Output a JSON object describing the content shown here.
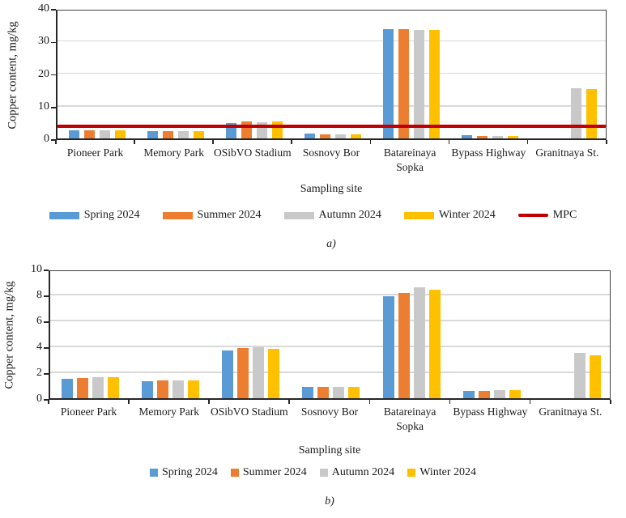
{
  "figure": {
    "background": "#ffffff"
  },
  "chart_data": [
    {
      "id": "a",
      "type": "bar",
      "title": "",
      "ylabel": "Copper content, mg/kg",
      "xlabel": "Sampling site",
      "caption": "a)",
      "ylim": [
        0,
        40
      ],
      "yticks": [
        0,
        10,
        20,
        30,
        40
      ],
      "grid": true,
      "legend_position": "bottom",
      "categories": [
        "Pioneer Park",
        "Memory Park",
        "OSibVO Stadium",
        "Sosnovy Bor",
        "Batareinaya Sopka",
        "Bypass Highway",
        "Granitnaya St."
      ],
      "series": [
        {
          "name": "Spring 2024",
          "color": "#5B9BD5",
          "values": [
            2.5,
            2.2,
            4.8,
            1.5,
            33.5,
            1.0,
            0
          ]
        },
        {
          "name": "Summer 2024",
          "color": "#ED7D31",
          "values": [
            2.5,
            2.2,
            5.2,
            1.3,
            33.6,
            0.8,
            0
          ]
        },
        {
          "name": "Autumn 2024",
          "color": "#C9C9C9",
          "values": [
            2.5,
            2.2,
            4.9,
            1.2,
            33.4,
            0.7,
            15.4
          ]
        },
        {
          "name": "Winter 2024",
          "color": "#FFC000",
          "values": [
            2.5,
            2.2,
            5.2,
            1.3,
            33.4,
            0.8,
            15.2
          ]
        }
      ],
      "ref_line": {
        "label": "MPC",
        "value": 3,
        "color": "#C00000"
      }
    },
    {
      "id": "b",
      "type": "bar",
      "title": "",
      "ylabel": "Copper content, mg/kg",
      "xlabel": "Sampling site",
      "caption": "b)",
      "ylim": [
        0,
        10
      ],
      "yticks": [
        0,
        2,
        4,
        6,
        8,
        10
      ],
      "grid": true,
      "legend_position": "bottom",
      "categories": [
        "Pioneer Park",
        "Memory Park",
        "OSibVO Stadium",
        "Sosnovy Bor",
        "Batareinaya Sopka",
        "Bypass Highway",
        "Granitnaya St."
      ],
      "series": [
        {
          "name": "Spring 2024",
          "color": "#5B9BD5",
          "values": [
            1.5,
            1.3,
            3.7,
            0.9,
            7.9,
            0.55,
            0
          ]
        },
        {
          "name": "Summer 2024",
          "color": "#ED7D31",
          "values": [
            1.55,
            1.35,
            3.85,
            0.9,
            8.1,
            0.55,
            0
          ]
        },
        {
          "name": "Autumn 2024",
          "color": "#C9C9C9",
          "values": [
            1.65,
            1.4,
            3.95,
            0.9,
            8.55,
            0.6,
            3.5
          ]
        },
        {
          "name": "Winter 2024",
          "color": "#FFC000",
          "values": [
            1.6,
            1.35,
            3.8,
            0.9,
            8.4,
            0.6,
            3.3
          ]
        }
      ],
      "ref_line": null
    }
  ]
}
